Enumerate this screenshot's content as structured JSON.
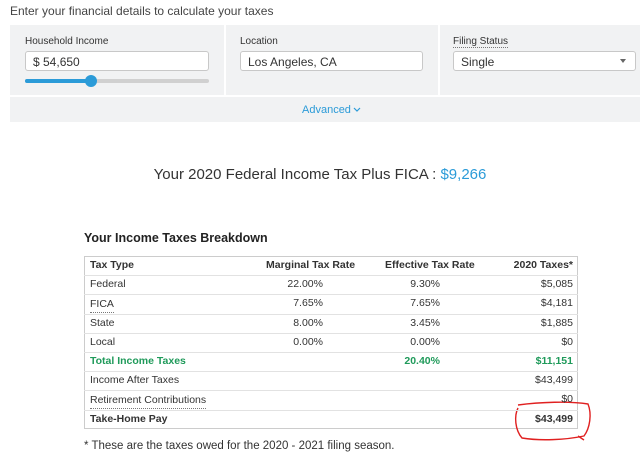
{
  "header": {
    "instruction": "Enter your financial details to calculate your taxes"
  },
  "form": {
    "fields": [
      {
        "label": "Household Income",
        "value": "$ 54,650"
      },
      {
        "label": "Location",
        "value": "Los Angeles, CA"
      },
      {
        "label": "Filing Status",
        "value": "Single"
      }
    ],
    "advanced": "Advanced"
  },
  "summary": {
    "title": "Your 2020 Federal Income Tax Plus FICA :",
    "amount": "$9,266"
  },
  "breakdown": {
    "title": "Your Income Taxes Breakdown",
    "columns": [
      "Tax Type",
      "Marginal Tax Rate",
      "Effective Tax Rate",
      "2020 Taxes*"
    ],
    "rows": [
      [
        "Federal",
        "22.00%",
        "9.30%",
        "$5,085"
      ],
      [
        "FICA",
        "7.65%",
        "7.65%",
        "$4,181"
      ],
      [
        "State",
        "8.00%",
        "3.45%",
        "$1,885"
      ],
      [
        "Local",
        "0.00%",
        "0.00%",
        "$0"
      ],
      [
        "Total Income Taxes",
        null,
        "20.40%",
        "$11,151"
      ],
      [
        "Income After Taxes",
        null,
        null,
        "$43,499"
      ],
      [
        "Retirement Contributions",
        null,
        null,
        "$0"
      ],
      [
        "Take-Home Pay",
        null,
        null,
        "$43,499"
      ]
    ],
    "footnote": "* These are the taxes owed for the 2020 - 2021 filing season."
  }
}
